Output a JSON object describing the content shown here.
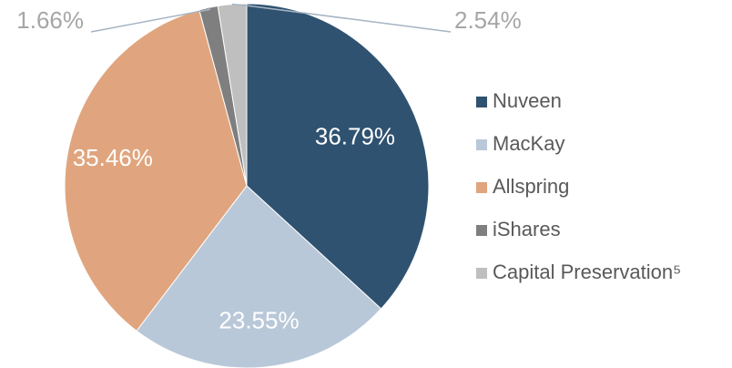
{
  "chart_data": {
    "type": "pie",
    "categories": [
      "Nuveen",
      "MacKay",
      "Allspring",
      "iShares",
      "Capital Preservation⁵"
    ],
    "values": [
      36.79,
      23.55,
      35.46,
      1.66,
      2.54
    ],
    "value_labels": [
      "36.79%",
      "23.55%",
      "35.46%",
      "1.66%",
      "2.54%"
    ],
    "colors": [
      "#2f5270",
      "#b9c8d8",
      "#e0a57e",
      "#7f7f7f",
      "#bfbfbf"
    ],
    "legend": "right"
  }
}
